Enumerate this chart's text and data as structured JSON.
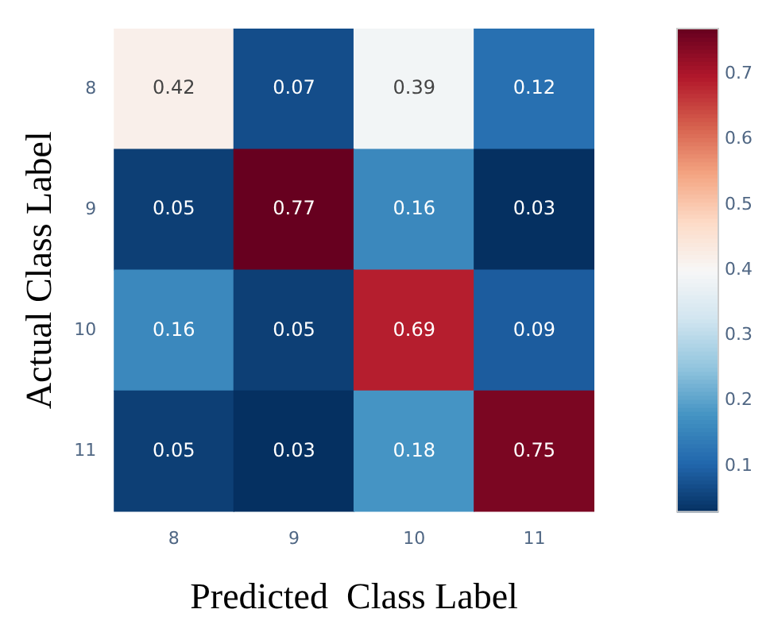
{
  "chart_data": {
    "type": "heatmap",
    "xlabel": "Predicted  Class Label",
    "ylabel": "Actual Class Label",
    "categories": [
      "8",
      "9",
      "10",
      "11"
    ],
    "y_categories": [
      "8",
      "9",
      "10",
      "11"
    ],
    "cells": [
      [
        0.42,
        0.07,
        0.39,
        0.12
      ],
      [
        0.05,
        0.77,
        0.16,
        0.03
      ],
      [
        0.16,
        0.05,
        0.69,
        0.09
      ],
      [
        0.05,
        0.03,
        0.18,
        0.75
      ]
    ],
    "clim": [
      0.03,
      0.77
    ],
    "cticks": [
      0.1,
      0.2,
      0.3,
      0.4,
      0.5,
      0.6,
      0.7
    ],
    "data_labels": true
  }
}
